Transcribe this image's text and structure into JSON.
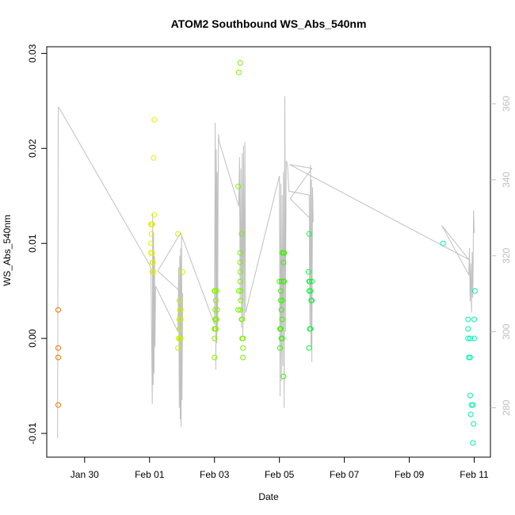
{
  "chart_data": {
    "type": "scatter",
    "title": "ATOM2 Southbound WS_Abs_540nm",
    "xlabel": "Date",
    "ylabel": "WS_Abs_540nm",
    "xlim": [
      "2017-01-28T20:00",
      "2017-02-11T12:00"
    ],
    "ylim": [
      -0.0125,
      0.0307
    ],
    "y2lim": [
      267,
      375
    ],
    "xticks": [
      {
        "value": "2017-01-30",
        "label": "Jan 30"
      },
      {
        "value": "2017-02-01",
        "label": "Feb 01"
      },
      {
        "value": "2017-02-03",
        "label": "Feb 03"
      },
      {
        "value": "2017-02-05",
        "label": "Feb 05"
      },
      {
        "value": "2017-02-07",
        "label": "Feb 07"
      },
      {
        "value": "2017-02-09",
        "label": "Feb 09"
      },
      {
        "value": "2017-02-11",
        "label": "Feb 11"
      }
    ],
    "yticks": [
      -0.01,
      0.0,
      0.01,
      0.02,
      0.03
    ],
    "ytick_labels": [
      "-0.01",
      "0.00",
      "0.01",
      "0.02",
      "0.03"
    ],
    "y2ticks": [
      280,
      300,
      320,
      340,
      360
    ],
    "y2tick_labels": [
      "280",
      "300",
      "320",
      "340",
      "360"
    ],
    "grid": false,
    "legend": "none",
    "line_color": "#c0c0c0",
    "line_series": {
      "axis": "right",
      "points": [
        [
          "2017-01-29T04:00",
          272
        ],
        [
          "2017-01-29T04:30",
          359
        ],
        [
          "2017-01-29T05:00",
          359
        ],
        [
          "2017-02-01T01:00",
          317
        ],
        [
          "2017-02-01T02:00",
          281
        ],
        [
          "2017-02-01T02:20",
          331
        ],
        [
          "2017-02-01T02:40",
          286
        ],
        [
          "2017-02-01T03:00",
          326
        ],
        [
          "2017-02-01T03:20",
          289
        ],
        [
          "2017-02-01T03:40",
          320
        ],
        [
          "2017-02-01T04:00",
          296
        ],
        [
          "2017-02-01T04:30",
          312
        ],
        [
          "2017-02-01T21:00",
          300
        ],
        [
          "2017-02-01T21:30",
          317
        ],
        [
          "2017-02-01T22:00",
          280
        ],
        [
          "2017-02-01T22:20",
          320
        ],
        [
          "2017-02-01T22:40",
          277
        ],
        [
          "2017-02-01T23:00",
          322
        ],
        [
          "2017-02-01T23:20",
          275
        ],
        [
          "2017-02-01T23:40",
          325
        ],
        [
          "2017-02-02T00:00",
          282
        ],
        [
          "2017-02-02T00:30",
          310
        ],
        [
          "2017-02-01T06:00",
          316
        ],
        [
          "2017-02-01T23:00",
          326
        ],
        [
          "2017-02-03T00:00",
          302
        ],
        [
          "2017-02-03T00:30",
          355
        ],
        [
          "2017-02-03T01:00",
          290
        ],
        [
          "2017-02-03T01:20",
          348
        ],
        [
          "2017-02-03T01:40",
          297
        ],
        [
          "2017-02-03T02:00",
          342
        ],
        [
          "2017-02-03T02:20",
          300
        ],
        [
          "2017-02-03T02:40",
          338
        ],
        [
          "2017-02-03T03:00",
          352
        ],
        [
          "2017-02-03T03:30",
          350
        ],
        [
          "2017-02-03T18:00",
          333
        ],
        [
          "2017-02-03T18:30",
          346
        ],
        [
          "2017-02-03T19:00",
          308
        ],
        [
          "2017-02-03T19:30",
          343
        ],
        [
          "2017-02-03T20:00",
          301
        ],
        [
          "2017-02-03T20:30",
          347
        ],
        [
          "2017-02-03T21:00",
          299
        ],
        [
          "2017-02-03T21:30",
          349
        ],
        [
          "2017-02-03T22:00",
          303
        ],
        [
          "2017-02-03T22:30",
          350
        ],
        [
          "2017-02-03T23:00",
          305
        ],
        [
          "2017-02-05T00:00",
          341
        ],
        [
          "2017-02-05T00:30",
          283
        ],
        [
          "2017-02-05T01:00",
          339
        ],
        [
          "2017-02-05T01:30",
          287
        ],
        [
          "2017-02-05T02:00",
          336
        ],
        [
          "2017-02-05T02:30",
          291
        ],
        [
          "2017-02-05T03:00",
          342
        ],
        [
          "2017-02-05T03:30",
          280
        ],
        [
          "2017-02-05T04:00",
          362
        ],
        [
          "2017-02-05T04:30",
          300
        ],
        [
          "2017-02-05T05:00",
          345
        ],
        [
          "2017-02-05T06:00",
          344
        ],
        [
          "2017-02-05T07:00",
          337
        ],
        [
          "2017-02-05T22:00",
          336
        ],
        [
          "2017-02-05T22:30",
          301
        ],
        [
          "2017-02-05T23:00",
          344
        ],
        [
          "2017-02-05T23:20",
          296
        ],
        [
          "2017-02-05T23:40",
          340
        ],
        [
          "2017-02-06T00:00",
          292
        ],
        [
          "2017-02-06T00:30",
          338
        ],
        [
          "2017-02-06T01:00",
          329
        ],
        [
          "2017-02-05T08:00",
          335
        ],
        [
          "2017-02-06T00:00",
          343
        ],
        [
          "2017-02-05T07:30",
          344
        ],
        [
          "2017-02-10T20:00",
          319
        ],
        [
          "2017-02-10T00:00",
          328
        ],
        [
          "2017-02-10T20:00",
          315
        ],
        [
          "2017-02-10T20:30",
          322
        ],
        [
          "2017-02-10T21:00",
          308
        ],
        [
          "2017-02-10T21:30",
          318
        ],
        [
          "2017-02-10T22:00",
          305
        ],
        [
          "2017-02-10T22:30",
          321
        ],
        [
          "2017-02-10T23:00",
          309
        ],
        [
          "2017-02-10T23:30",
          332
        ],
        [
          "2017-02-11T00:00",
          326
        ]
      ]
    },
    "series": [
      {
        "color": "#ee7600",
        "points": [
          [
            "2017-01-29T04:30",
            0.003
          ],
          [
            "2017-01-29T04:30",
            -0.001
          ],
          [
            "2017-01-29T04:30",
            -0.002
          ],
          [
            "2017-01-29T04:30",
            -0.007
          ]
        ]
      },
      {
        "color": "#e0ec00",
        "points": [
          [
            "2017-02-01T01:00",
            0.012
          ],
          [
            "2017-02-01T01:30",
            0.012
          ],
          [
            "2017-02-01T02:00",
            0.012
          ],
          [
            "2017-02-01T01:00",
            0.01
          ],
          [
            "2017-02-01T01:30",
            0.011
          ],
          [
            "2017-02-01T02:00",
            0.009
          ],
          [
            "2017-02-01T02:00",
            0.008
          ],
          [
            "2017-02-01T02:30",
            0.008
          ],
          [
            "2017-02-01T03:00",
            0.007
          ],
          [
            "2017-02-01T02:00",
            0.007
          ],
          [
            "2017-02-01T03:30",
            0.013
          ],
          [
            "2017-02-01T03:00",
            0.019
          ],
          [
            "2017-02-01T03:30",
            0.023
          ],
          [
            "2017-02-01T01:00",
            0.009
          ]
        ]
      },
      {
        "color": "#c8f000",
        "points": [
          [
            "2017-02-01T21:00",
            0.011
          ],
          [
            "2017-02-01T22:00",
            0.004
          ],
          [
            "2017-02-01T22:30",
            0.003
          ],
          [
            "2017-02-01T23:00",
            0.003
          ],
          [
            "2017-02-01T22:00",
            0.002
          ],
          [
            "2017-02-01T23:00",
            0.002
          ],
          [
            "2017-02-01T21:30",
            0.0
          ],
          [
            "2017-02-01T22:30",
            0.0
          ],
          [
            "2017-02-01T23:00",
            0.0
          ],
          [
            "2017-02-01T21:00",
            -0.001
          ],
          [
            "2017-02-02T00:30",
            0.007
          ],
          [
            "2017-02-01T22:00",
            0.001
          ]
        ]
      },
      {
        "color": "#8cf000",
        "points": [
          [
            "2017-02-03T00:00",
            0.005
          ],
          [
            "2017-02-03T00:30",
            0.005
          ],
          [
            "2017-02-03T01:30",
            0.005
          ],
          [
            "2017-02-03T00:30",
            0.003
          ],
          [
            "2017-02-03T02:00",
            0.003
          ],
          [
            "2017-02-03T01:00",
            0.004
          ],
          [
            "2017-02-03T00:30",
            0.002
          ],
          [
            "2017-02-03T01:00",
            0.002
          ],
          [
            "2017-02-03T01:30",
            0.002
          ],
          [
            "2017-02-03T00:00",
            0.001
          ],
          [
            "2017-02-03T00:30",
            0.001
          ],
          [
            "2017-02-03T01:00",
            0.001
          ],
          [
            "2017-02-03T00:00",
            0.0
          ],
          [
            "2017-02-03T00:00",
            -0.002
          ]
        ]
      },
      {
        "color": "#7cf000",
        "points": [
          [
            "2017-02-03T19:00",
            0.029
          ],
          [
            "2017-02-03T18:00",
            0.028
          ],
          [
            "2017-02-03T17:30",
            0.016
          ],
          [
            "2017-02-03T20:00",
            0.011
          ],
          [
            "2017-02-03T19:00",
            0.009
          ],
          [
            "2017-02-03T19:00",
            0.008
          ],
          [
            "2017-02-03T19:00",
            0.007
          ],
          [
            "2017-02-03T18:00",
            0.005
          ],
          [
            "2017-02-03T19:00",
            0.006
          ],
          [
            "2017-02-03T19:30",
            0.005
          ],
          [
            "2017-02-03T19:30",
            0.004
          ],
          [
            "2017-02-03T17:30",
            0.003
          ],
          [
            "2017-02-03T19:00",
            0.003
          ],
          [
            "2017-02-03T20:00",
            0.002
          ],
          [
            "2017-02-03T20:30",
            0.002
          ],
          [
            "2017-02-03T20:30",
            0.0
          ],
          [
            "2017-02-03T21:00",
            0.0
          ],
          [
            "2017-02-03T21:00",
            -0.001
          ],
          [
            "2017-02-03T21:00",
            -0.002
          ]
        ]
      },
      {
        "color": "#3cf000",
        "points": [
          [
            "2017-02-05T02:00",
            0.009
          ],
          [
            "2017-02-05T03:00",
            0.009
          ],
          [
            "2017-02-05T03:30",
            0.009
          ],
          [
            "2017-02-05T03:00",
            0.008
          ],
          [
            "2017-02-05T00:00",
            0.006
          ],
          [
            "2017-02-05T01:30",
            0.006
          ],
          [
            "2017-02-05T03:00",
            0.006
          ],
          [
            "2017-02-05T03:30",
            0.006
          ],
          [
            "2017-02-05T01:00",
            0.005
          ],
          [
            "2017-02-05T01:00",
            0.004
          ],
          [
            "2017-02-05T02:00",
            0.004
          ],
          [
            "2017-02-05T01:30",
            0.003
          ],
          [
            "2017-02-05T02:00",
            0.002
          ],
          [
            "2017-02-05T00:30",
            0.001
          ],
          [
            "2017-02-05T01:00",
            0.001
          ],
          [
            "2017-02-05T01:30",
            0.0
          ],
          [
            "2017-02-05T02:00",
            0.0
          ],
          [
            "2017-02-05T00:30",
            -0.001
          ],
          [
            "2017-02-05T03:00",
            -0.004
          ]
        ]
      },
      {
        "color": "#10f040",
        "points": [
          [
            "2017-02-05T22:00",
            0.011
          ],
          [
            "2017-02-05T21:30",
            0.007
          ],
          [
            "2017-02-05T22:00",
            0.006
          ],
          [
            "2017-02-05T22:30",
            0.006
          ],
          [
            "2017-02-06T00:00",
            0.006
          ],
          [
            "2017-02-05T22:00",
            0.005
          ],
          [
            "2017-02-05T23:00",
            0.005
          ],
          [
            "2017-02-05T23:30",
            0.004
          ],
          [
            "2017-02-06T00:00",
            0.004
          ],
          [
            "2017-02-05T22:30",
            0.001
          ],
          [
            "2017-02-05T23:00",
            0.001
          ],
          [
            "2017-02-05T22:00",
            -0.001
          ]
        ]
      },
      {
        "color": "#00f0b0",
        "points": [
          [
            "2017-02-10T01:00",
            0.01
          ],
          [
            "2017-02-11T00:30",
            0.005
          ],
          [
            "2017-02-10T19:30",
            0.002
          ],
          [
            "2017-02-11T00:00",
            0.002
          ],
          [
            "2017-02-10T19:30",
            0.001
          ],
          [
            "2017-02-10T21:00",
            0.0
          ],
          [
            "2017-02-11T00:00",
            0.0
          ],
          [
            "2017-02-10T19:30",
            0.0
          ],
          [
            "2017-02-10T20:00",
            -0.002
          ],
          [
            "2017-02-10T21:00",
            -0.002
          ],
          [
            "2017-02-10T21:00",
            -0.006
          ],
          [
            "2017-02-10T22:00",
            -0.007
          ],
          [
            "2017-02-10T23:00",
            -0.007
          ],
          [
            "2017-02-10T21:30",
            -0.008
          ],
          [
            "2017-02-10T23:30",
            -0.009
          ],
          [
            "2017-02-10T23:00",
            -0.011
          ]
        ]
      }
    ]
  }
}
